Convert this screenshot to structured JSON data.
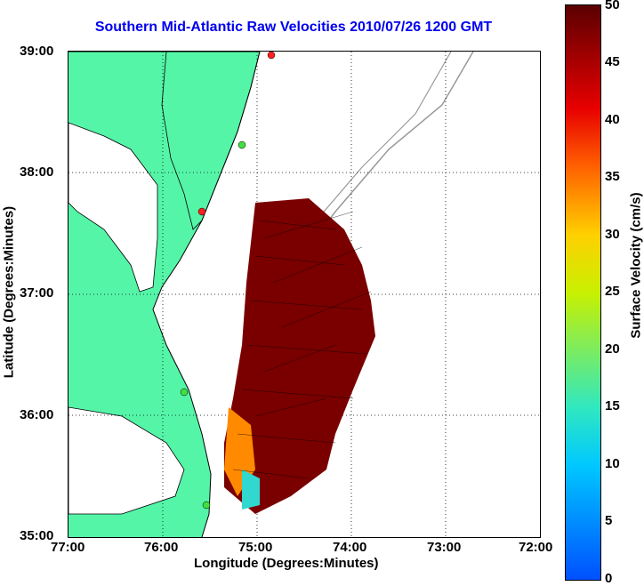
{
  "title": "Southern Mid-Atlantic Raw Velocities 2010/07/26 1200 GMT",
  "xlabel": "Longitude (Degrees:Minutes)",
  "ylabel": "Latitude (Degrees:Minutes)",
  "colorbar_label": "Surface Velocity (cm/s)",
  "x_ticks": [
    "77:00",
    "76:00",
    "75:00",
    "74:00",
    "73:00",
    "72:00"
  ],
  "y_ticks": [
    "39:00",
    "38:00",
    "37:00",
    "36:00",
    "35:00"
  ],
  "colorbar_ticks": [
    "50",
    "45",
    "40",
    "35",
    "30",
    "25",
    "20",
    "15",
    "10",
    "5",
    "0"
  ],
  "colors": {
    "land": "#55f5a8",
    "title": "#0000ee"
  },
  "map": {
    "lon_range": [
      -77,
      -72
    ],
    "lat_range": [
      35,
      39
    ],
    "velocity_range_cm_s": [
      0,
      50
    ]
  }
}
